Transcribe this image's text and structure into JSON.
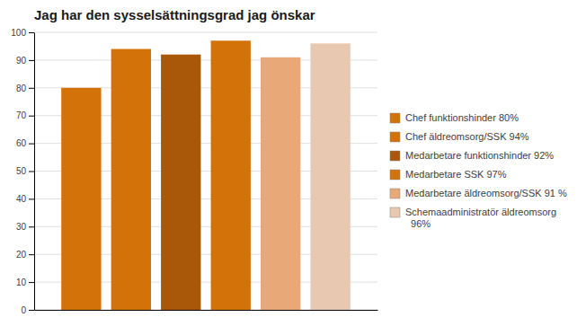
{
  "chart_data": {
    "type": "bar",
    "title": "Jag har den sysselsättningsgrad jag önskar",
    "categories": [
      null
    ],
    "series": [
      {
        "name": "Chef funktionshinder 80%",
        "color": "#D4720A",
        "values": [
          80
        ]
      },
      {
        "name": "Chef äldreomsorg/SSK 94%",
        "color": "#D4720A",
        "values": [
          94
        ]
      },
      {
        "name": "Medarbetare funktionshinder 92%",
        "color": "#A85808",
        "values": [
          92
        ]
      },
      {
        "name": "Medarbetare SSK 97%",
        "color": "#D4720A",
        "values": [
          97
        ]
      },
      {
        "name": "Medarbetare äldreomsorg/SSK 91 %",
        "color": "#E8A878",
        "values": [
          91
        ]
      },
      {
        "name": "Schemaadministratör äldreomsorg\n  96%",
        "color": "#E8C8B0",
        "values": [
          96
        ]
      }
    ],
    "ylim": [
      0,
      100
    ],
    "yticks": [
      0,
      10,
      20,
      30,
      40,
      50,
      60,
      70,
      80,
      90,
      100
    ],
    "grid": true,
    "legend": "right",
    "tick_labels": "y"
  }
}
